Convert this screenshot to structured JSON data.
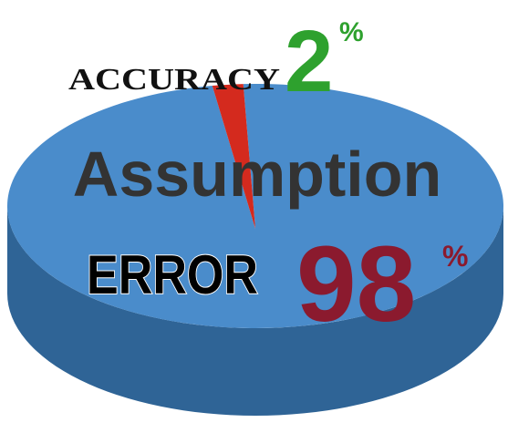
{
  "chart_data": {
    "type": "pie",
    "categories": [
      "ACCURACY",
      "ERROR"
    ],
    "values": [
      2,
      98
    ],
    "unit": "%",
    "colors": [
      "#d42a1e",
      "#4a8ccb"
    ],
    "side_color": "#2f6496",
    "annotations": [
      "Assumption"
    ]
  }
}
